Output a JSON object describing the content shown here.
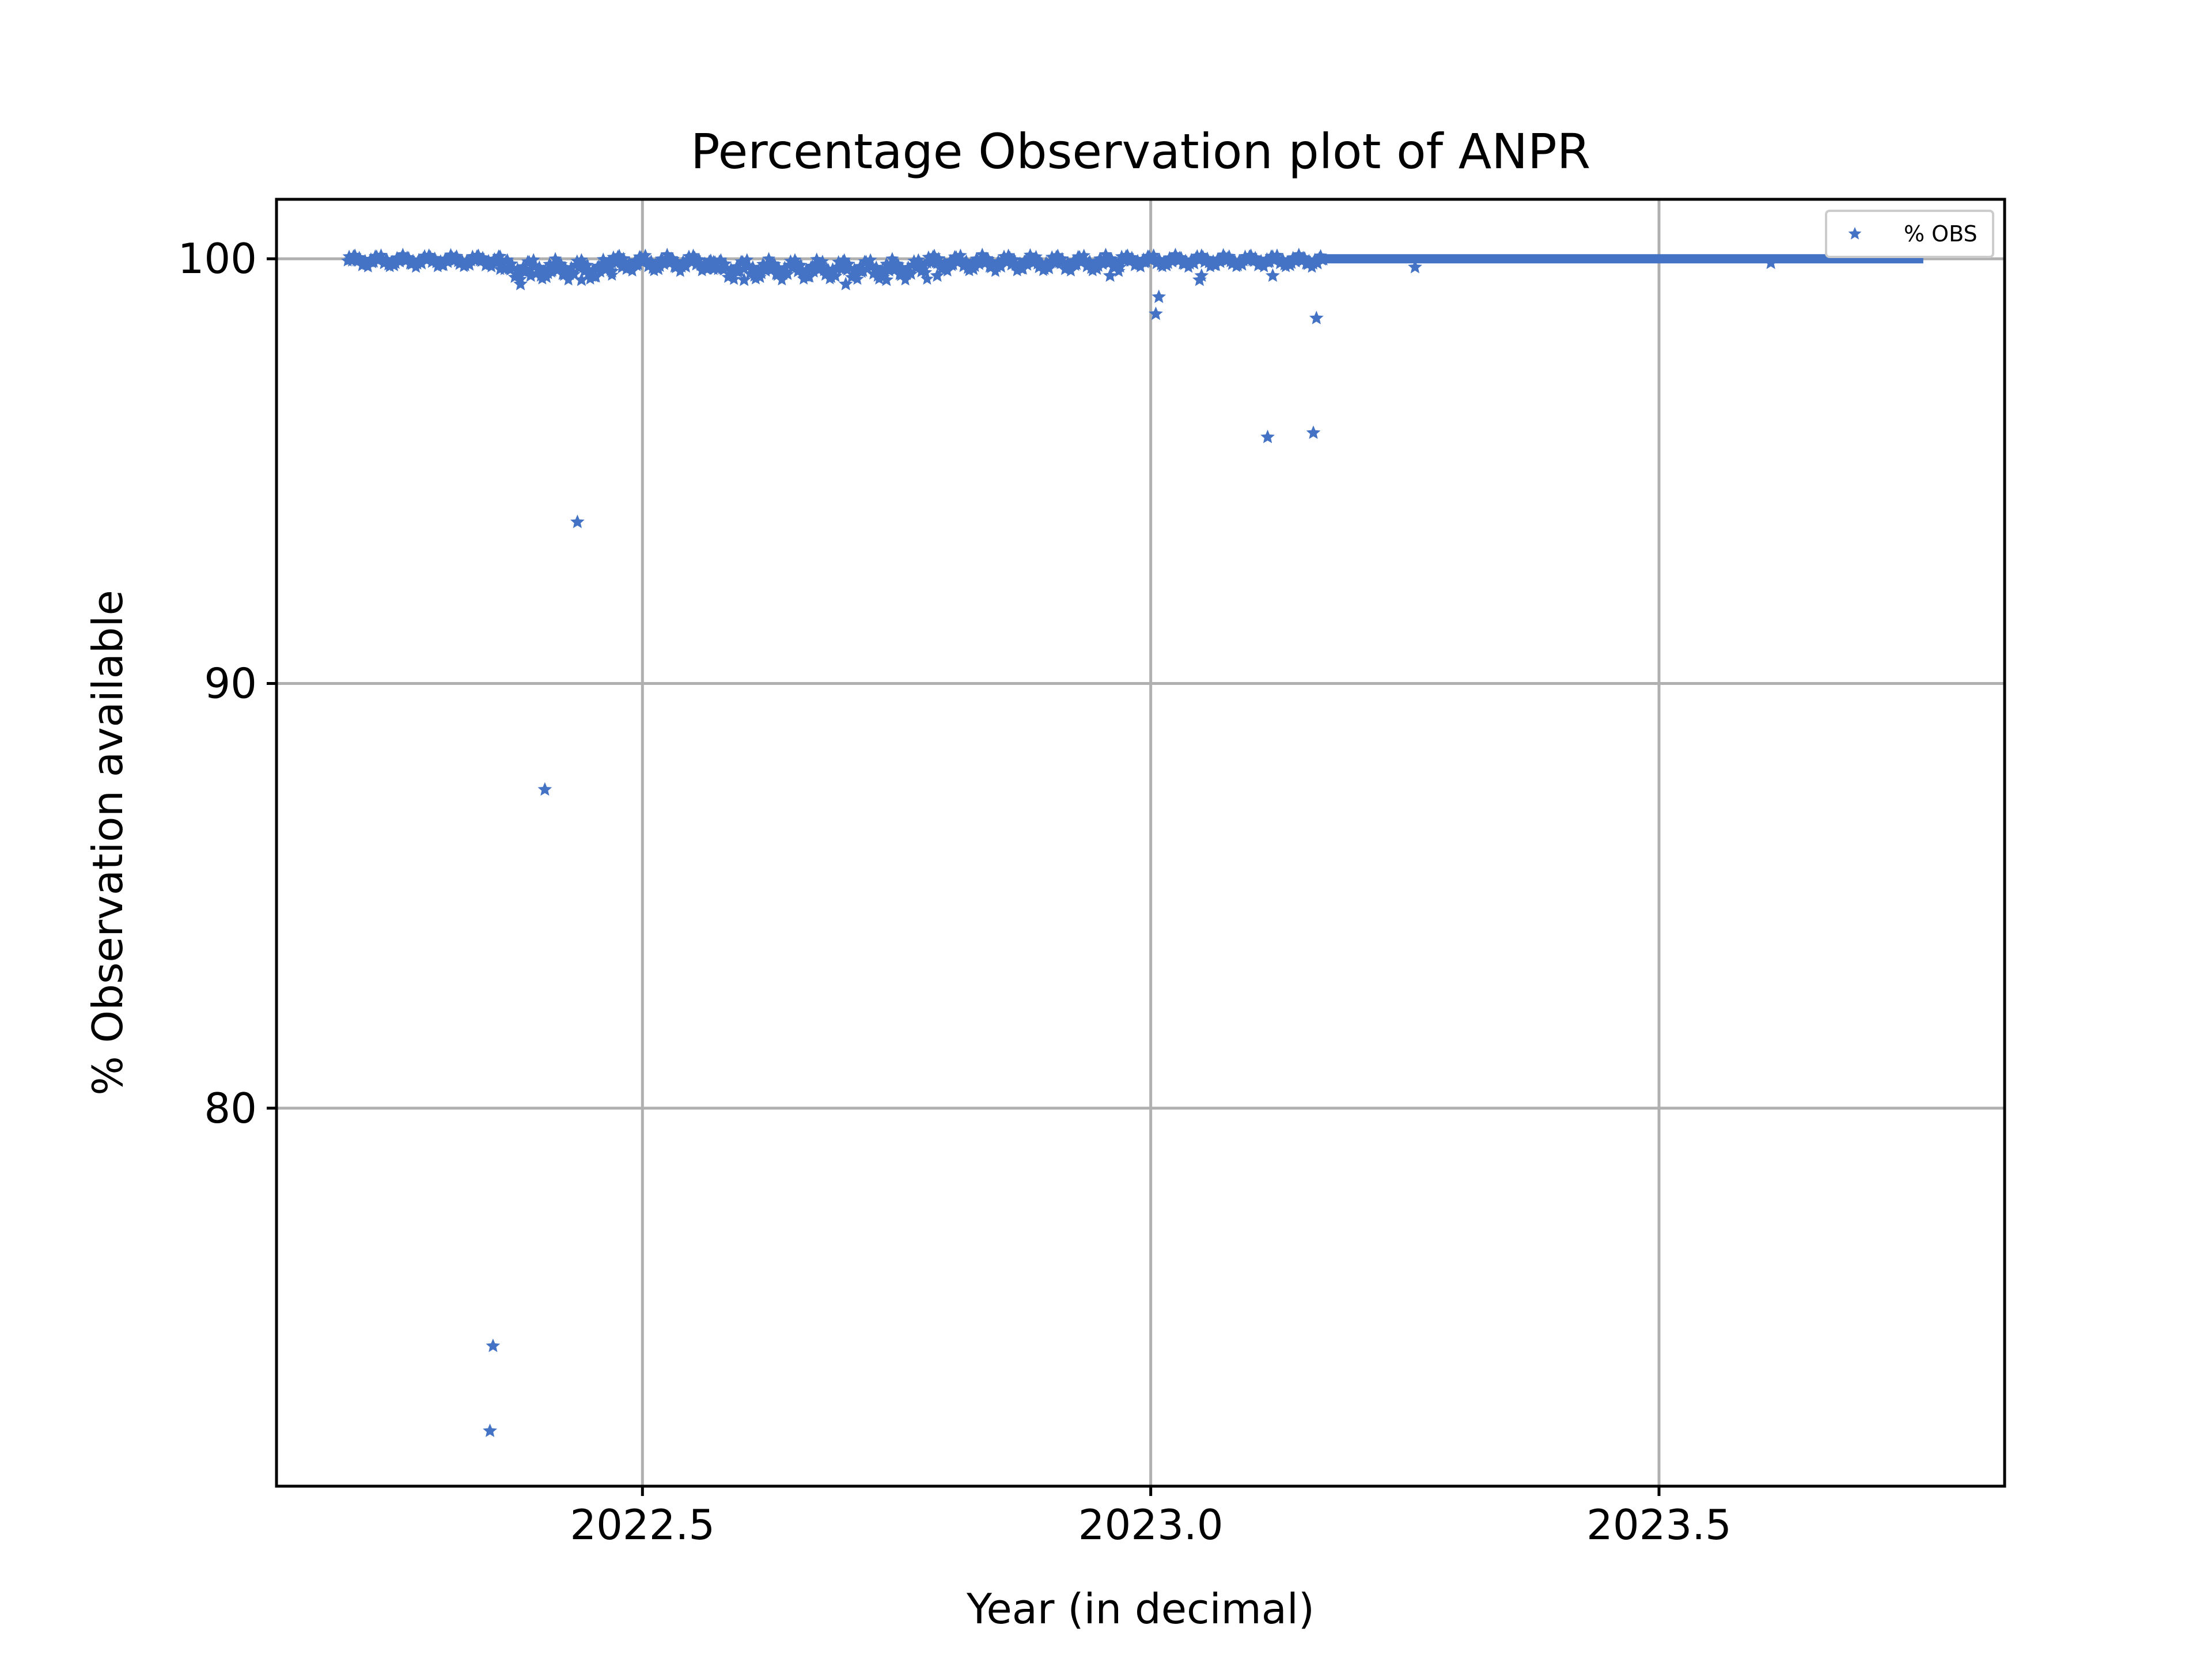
{
  "chart_data": {
    "type": "scatter",
    "title": "Percentage Observation plot of ANPR",
    "xlabel": "Year (in decimal)",
    "ylabel": "% Observation available",
    "xlim": [
      2022.14,
      2023.84
    ],
    "ylim": [
      71.1,
      101.4
    ],
    "xticks": [
      2022.5,
      2023.0,
      2023.5
    ],
    "xtick_labels": [
      "2022.5",
      "2023.0",
      "2023.5"
    ],
    "yticks": [
      80,
      90,
      100
    ],
    "ytick_labels": [
      "80",
      "90",
      "100"
    ],
    "grid": true,
    "legend": {
      "position": "top-right",
      "entries": [
        "% OBS"
      ]
    },
    "series": [
      {
        "name": "% OBS",
        "color": "#4472c4",
        "marker": "star",
        "points": [
          [
            2022.35,
            72.4
          ],
          [
            2022.353,
            74.4
          ],
          [
            2022.404,
            87.5
          ],
          [
            2022.436,
            93.8
          ],
          [
            2022.38,
            99.4
          ],
          [
            2022.39,
            99.6
          ],
          [
            2022.41,
            99.7
          ],
          [
            2022.42,
            99.8
          ],
          [
            2022.44,
            99.5
          ],
          [
            2022.45,
            99.6
          ],
          [
            2022.47,
            99.7
          ],
          [
            2022.48,
            99.8
          ],
          [
            2022.6,
            99.5
          ],
          [
            2022.66,
            99.6
          ],
          [
            2022.7,
            99.4
          ],
          [
            2022.74,
            99.5
          ],
          [
            2022.79,
            99.6
          ],
          [
            2022.96,
            99.6
          ],
          [
            2023.005,
            98.7
          ],
          [
            2023.008,
            99.1
          ],
          [
            2023.048,
            99.5
          ],
          [
            2023.05,
            99.6
          ],
          [
            2023.115,
            95.8
          ],
          [
            2023.12,
            99.6
          ],
          [
            2023.16,
            95.9
          ],
          [
            2023.163,
            98.6
          ],
          [
            2023.26,
            99.8
          ],
          [
            2023.61,
            99.9
          ]
        ],
        "dense_ranges": [
          {
            "x": [
              2022.21,
              2022.36
            ],
            "y": [
              99.8,
              100.1
            ]
          },
          {
            "x": [
              2022.36,
              2022.47
            ],
            "y": [
              99.5,
              100.0
            ]
          },
          {
            "x": [
              2022.47,
              2022.57
            ],
            "y": [
              99.7,
              100.1
            ]
          },
          {
            "x": [
              2022.57,
              2022.78
            ],
            "y": [
              99.5,
              100.0
            ]
          },
          {
            "x": [
              2022.78,
              2022.97
            ],
            "y": [
              99.7,
              100.1
            ]
          },
          {
            "x": [
              2022.97,
              2023.17
            ],
            "y": [
              99.8,
              100.1
            ]
          }
        ],
        "constant_segment": {
          "x": [
            2023.17,
            2023.76
          ],
          "y": 100.0
        }
      }
    ]
  }
}
